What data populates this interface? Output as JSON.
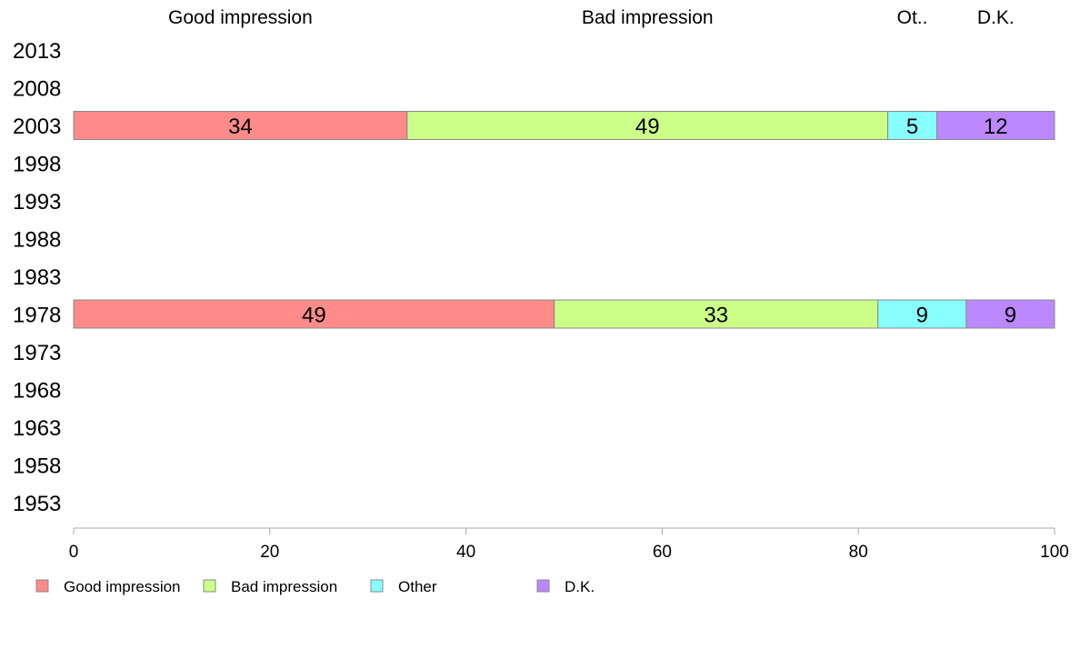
{
  "chart_data": {
    "type": "bar",
    "orientation": "horizontal",
    "stacked": true,
    "title": "",
    "xlabel": "",
    "ylabel": "",
    "xlim": [
      0,
      100
    ],
    "x_ticks": [
      "0",
      "20",
      "40",
      "60",
      "80",
      "100"
    ],
    "categories": [
      "2013",
      "2008",
      "2003",
      "1998",
      "1993",
      "1988",
      "1983",
      "1978",
      "1973",
      "1968",
      "1963",
      "1958",
      "1953"
    ],
    "column_headers": [
      "Good impression",
      "Bad impression",
      "Ot..",
      "D.K."
    ],
    "series": [
      {
        "name": "Good impression",
        "color": "#ff8a8a",
        "values": [
          null,
          null,
          34,
          null,
          null,
          null,
          null,
          49,
          null,
          null,
          null,
          null,
          null
        ]
      },
      {
        "name": "Bad impression",
        "color": "#ccff88",
        "values": [
          null,
          null,
          49,
          null,
          null,
          null,
          null,
          33,
          null,
          null,
          null,
          null,
          null
        ]
      },
      {
        "name": "Other",
        "color": "#88ffff",
        "values": [
          null,
          null,
          5,
          null,
          null,
          null,
          null,
          9,
          null,
          null,
          null,
          null,
          null
        ]
      },
      {
        "name": "D.K.",
        "color": "#bb88ff",
        "values": [
          null,
          null,
          12,
          null,
          null,
          null,
          null,
          9,
          null,
          null,
          null,
          null,
          null
        ]
      }
    ],
    "legend_position": "bottom-left",
    "grid": false
  }
}
